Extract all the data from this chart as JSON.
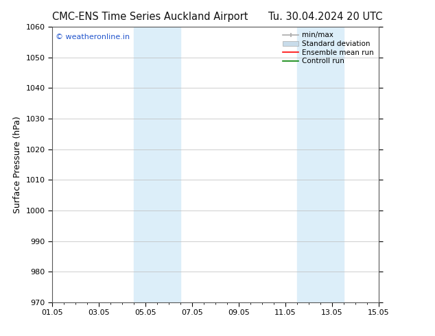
{
  "title_left": "CMC-ENS Time Series Auckland Airport",
  "title_right": "Tu. 30.04.2024 20 UTC",
  "ylabel": "Surface Pressure (hPa)",
  "ylim": [
    970,
    1060
  ],
  "yticks": [
    970,
    980,
    990,
    1000,
    1010,
    1020,
    1030,
    1040,
    1050,
    1060
  ],
  "xlim_start": 0,
  "xlim_end": 14,
  "xtick_labels": [
    "01.05",
    "03.05",
    "05.05",
    "07.05",
    "09.05",
    "11.05",
    "13.05",
    "15.05"
  ],
  "xtick_positions": [
    0,
    2,
    4,
    6,
    8,
    10,
    12,
    14
  ],
  "shaded_bands": [
    {
      "x_start": 3.5,
      "x_end": 5.5
    },
    {
      "x_start": 10.5,
      "x_end": 12.5
    }
  ],
  "shaded_color": "#dceef9",
  "watermark": "© weatheronline.in",
  "watermark_color": "#2255cc",
  "legend_items": [
    {
      "label": "min/max",
      "color": "#aaaaaa"
    },
    {
      "label": "Standard deviation",
      "color": "#c8dcea"
    },
    {
      "label": "Ensemble mean run",
      "color": "#ff0000"
    },
    {
      "label": "Controll run",
      "color": "#008000"
    }
  ],
  "bg_color": "#ffffff",
  "grid_color": "#bbbbbb",
  "spine_color": "#555555",
  "title_fontsize": 10.5,
  "ylabel_fontsize": 9,
  "tick_fontsize": 8,
  "watermark_fontsize": 8,
  "legend_fontsize": 7.5
}
